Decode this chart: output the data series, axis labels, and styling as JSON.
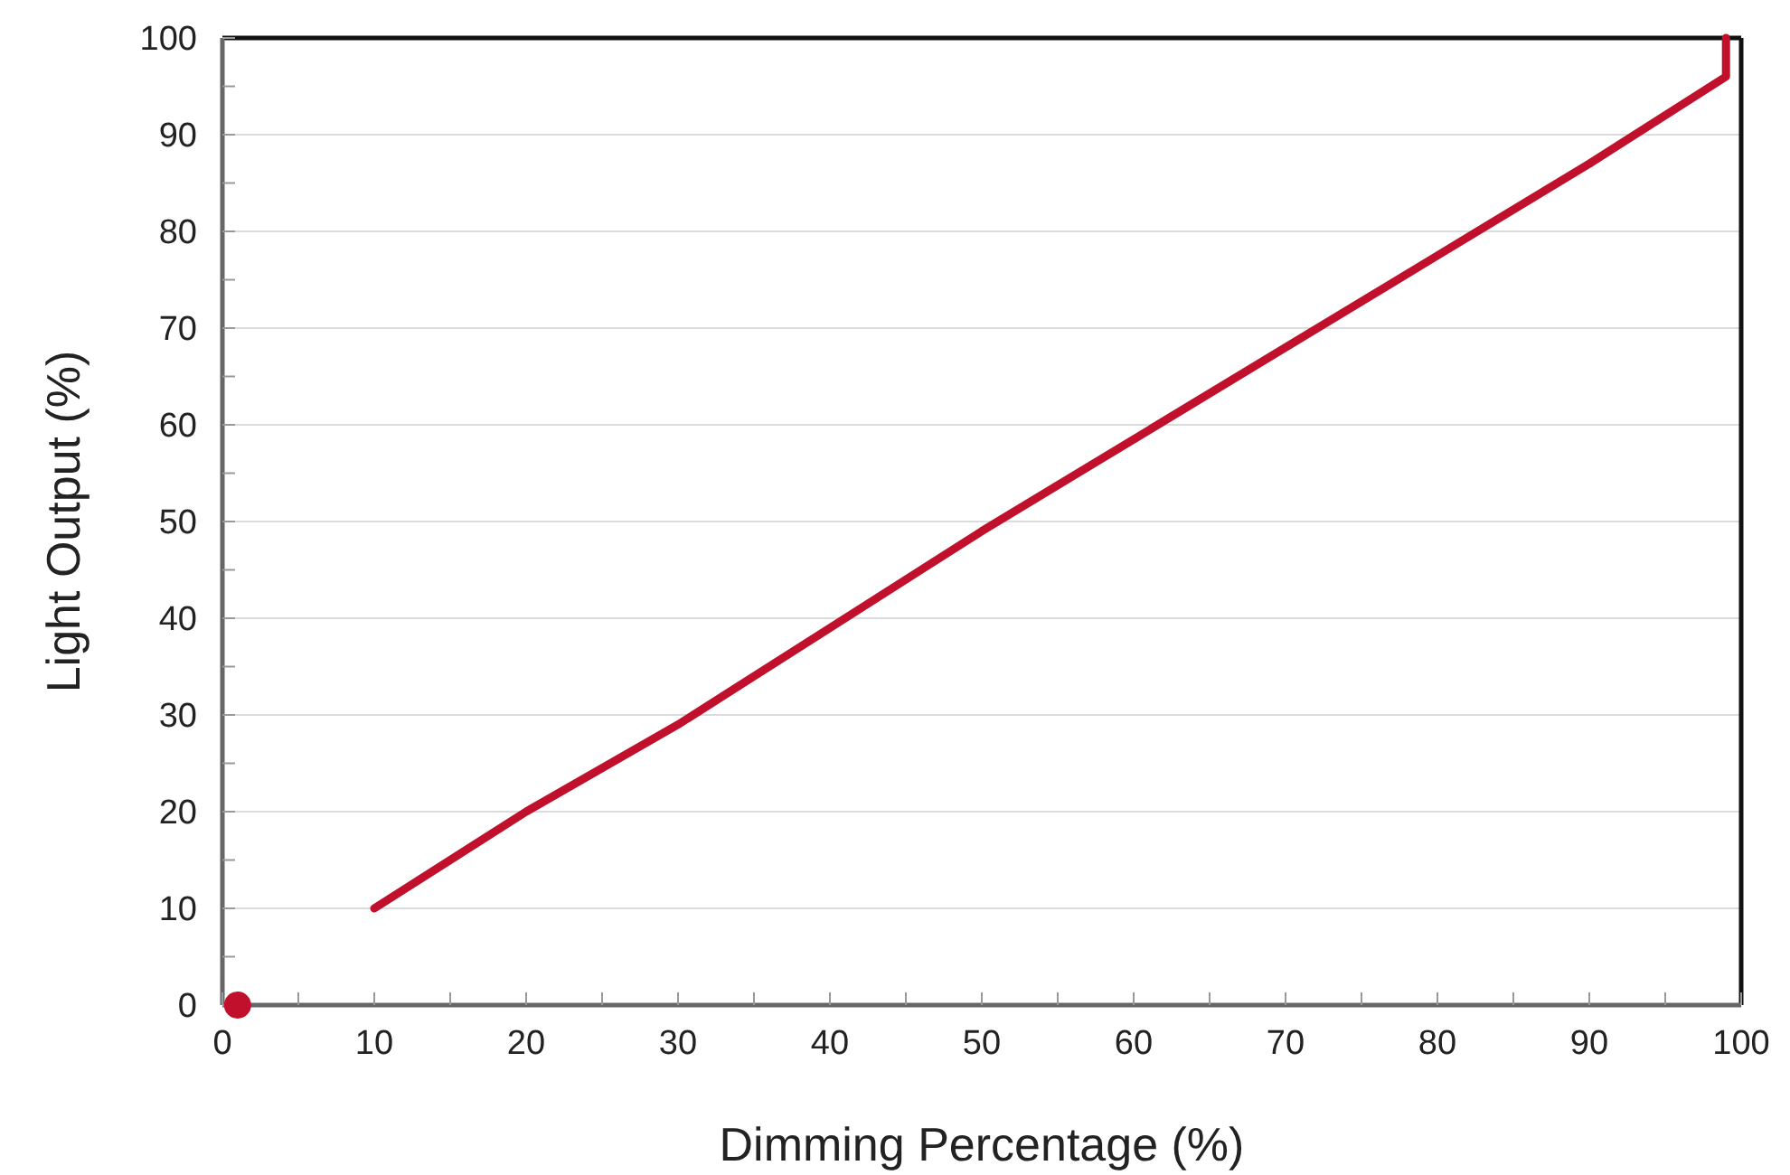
{
  "chart_data": {
    "type": "line",
    "xlabel": "Dimming Percentage (%)",
    "ylabel": "Light Output (%)",
    "xlim": [
      0,
      100
    ],
    "ylim": [
      0,
      100
    ],
    "xticks": [
      0,
      {
        "value": 5,
        "label": null
      },
      10,
      {
        "value": 15,
        "label": null
      },
      20,
      {
        "value": 25,
        "label": null
      },
      30,
      {
        "value": 35,
        "label": null
      },
      40,
      {
        "value": 45,
        "label": null
      },
      50,
      {
        "value": 55,
        "label": null
      },
      60,
      {
        "value": 65,
        "label": null
      },
      70,
      {
        "value": 75,
        "label": null
      },
      80,
      {
        "value": 85,
        "label": null
      },
      90,
      {
        "value": 95,
        "label": null
      },
      100
    ],
    "yticks": [
      0,
      {
        "value": 5,
        "label": null
      },
      10,
      {
        "value": 15,
        "label": null
      },
      20,
      {
        "value": 25,
        "label": null
      },
      30,
      {
        "value": 35,
        "label": null
      },
      40,
      {
        "value": 45,
        "label": null
      },
      50,
      {
        "value": 55,
        "label": null
      },
      60,
      {
        "value": 65,
        "label": null
      },
      70,
      {
        "value": 75,
        "label": null
      },
      80,
      {
        "value": 85,
        "label": null
      },
      90,
      {
        "value": 95,
        "label": null
      },
      100
    ],
    "grid": "y",
    "series": [
      {
        "color": "#c0102c",
        "x": [
          10,
          20,
          30,
          40,
          50,
          60,
          70,
          80,
          90,
          99,
          99
        ],
        "values": [
          10,
          20,
          29,
          39,
          49,
          58.5,
          68,
          77.5,
          87,
          96,
          100
        ],
        "marker": "none",
        "line_style": "solid"
      },
      {
        "type": "scatter",
        "color": "#c0102c",
        "x": [
          1
        ],
        "values": [
          0
        ],
        "marker": "circle"
      }
    ]
  }
}
